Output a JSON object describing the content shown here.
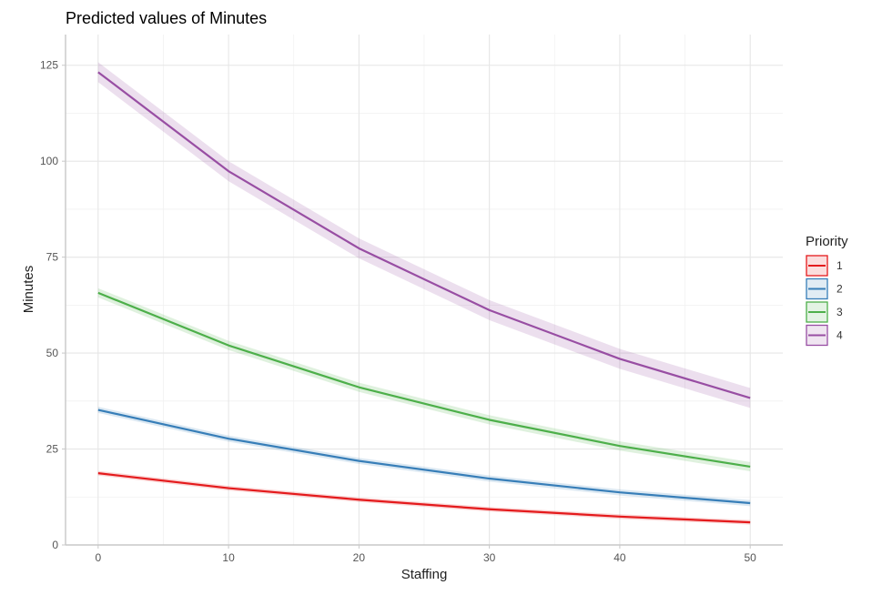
{
  "chart_data": {
    "type": "line",
    "title": "Predicted values of Minutes",
    "xlabel": "Staffing",
    "ylabel": "Minutes",
    "xlim": [
      -2.5,
      52.5
    ],
    "ylim": [
      0,
      133
    ],
    "x_ticks": [
      "0",
      "10",
      "20",
      "30",
      "40",
      "50"
    ],
    "y_ticks": [
      "0",
      "25",
      "50",
      "75",
      "100",
      "125"
    ],
    "grid": true,
    "legend_position": "right",
    "legend_title": "Priority",
    "x": [
      0,
      10,
      20,
      30,
      40,
      50
    ],
    "series": [
      {
        "name": "1",
        "color": "#e41a1c",
        "values": [
          18.7,
          14.8,
          11.8,
          9.3,
          7.4,
          5.9
        ],
        "ci_half": 0.6
      },
      {
        "name": "2",
        "color": "#377eb8",
        "values": [
          35.2,
          27.7,
          21.9,
          17.3,
          13.7,
          10.9
        ],
        "ci_half": 0.8
      },
      {
        "name": "3",
        "color": "#4daf4a",
        "values": [
          65.7,
          52.0,
          41.1,
          32.6,
          25.8,
          20.4
        ],
        "ci_half": 1.2
      },
      {
        "name": "4",
        "color": "#984ea3",
        "values": [
          123.2,
          97.4,
          77.3,
          61.2,
          48.5,
          38.3
        ],
        "ci_half": 2.6
      }
    ]
  }
}
